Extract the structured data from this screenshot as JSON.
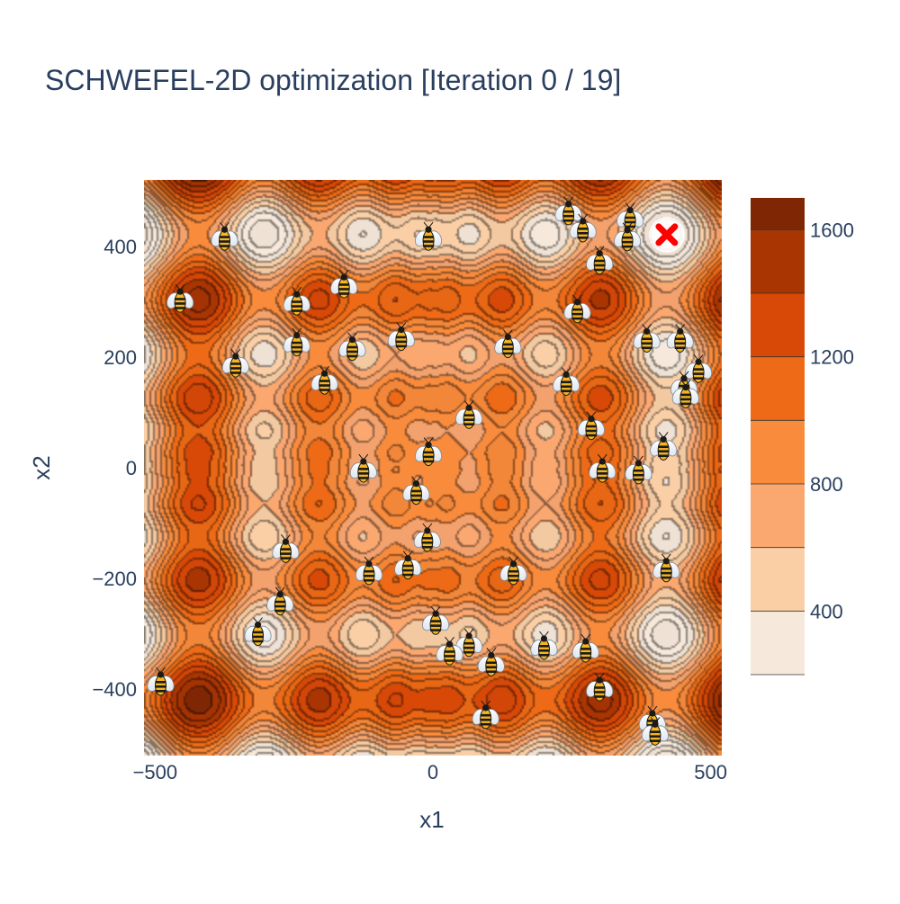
{
  "chart_data": {
    "type": "contour",
    "title": "SCHWEFEL-2D optimization [Iteration 0 / 19]",
    "xlabel": "x1",
    "ylabel": "x2",
    "xlim": [
      -520,
      520
    ],
    "ylim": [
      -520,
      520
    ],
    "x_ticks": [
      -500,
      0,
      500
    ],
    "x_tick_labels": [
      "−500",
      "0",
      "500"
    ],
    "y_ticks": [
      -400,
      -200,
      0,
      200,
      400
    ],
    "y_tick_labels": [
      "−400",
      "−200",
      "0",
      "200",
      "400"
    ],
    "colorbar": {
      "range": [
        200,
        1700
      ],
      "ticks": [
        400,
        800,
        1200,
        1600
      ],
      "tick_labels": [
        "400",
        "800",
        "1200",
        "1600"
      ],
      "levels": [
        200,
        400,
        600,
        800,
        1000,
        1200,
        1400,
        1600,
        1700
      ],
      "colors": [
        "#f6e8da",
        "#fbcfa6",
        "#fba770",
        "#f98b3c",
        "#ee6a16",
        "#d84807",
        "#a93503",
        "#7f2704"
      ]
    },
    "background_function": "schwefel",
    "best_marker": {
      "x": 421,
      "y": 421,
      "color": "#ff0000",
      "symbol": "x"
    },
    "bees": [
      {
        "x": 244,
        "y": 460
      },
      {
        "x": 355,
        "y": 449
      },
      {
        "x": 270,
        "y": 429
      },
      {
        "x": 350,
        "y": 413
      },
      {
        "x": -375,
        "y": 414
      },
      {
        "x": -8,
        "y": 414
      },
      {
        "x": 300,
        "y": 371
      },
      {
        "x": -160,
        "y": 328
      },
      {
        "x": -245,
        "y": 297
      },
      {
        "x": 260,
        "y": 283
      },
      {
        "x": -455,
        "y": 302
      },
      {
        "x": -245,
        "y": 223
      },
      {
        "x": -145,
        "y": 215
      },
      {
        "x": -57,
        "y": 233
      },
      {
        "x": 135,
        "y": 220
      },
      {
        "x": 385,
        "y": 230
      },
      {
        "x": 445,
        "y": 230
      },
      {
        "x": -355,
        "y": 185
      },
      {
        "x": -195,
        "y": 154
      },
      {
        "x": 240,
        "y": 152
      },
      {
        "x": 478,
        "y": 175
      },
      {
        "x": 452,
        "y": 145
      },
      {
        "x": 455,
        "y": 129
      },
      {
        "x": 65,
        "y": 92
      },
      {
        "x": 285,
        "y": 72
      },
      {
        "x": 415,
        "y": 35
      },
      {
        "x": -8,
        "y": 25
      },
      {
        "x": -125,
        "y": -5
      },
      {
        "x": 305,
        "y": -5
      },
      {
        "x": 370,
        "y": -8
      },
      {
        "x": -30,
        "y": -45
      },
      {
        "x": -10,
        "y": -130
      },
      {
        "x": -265,
        "y": -150
      },
      {
        "x": -45,
        "y": -180
      },
      {
        "x": -115,
        "y": -190
      },
      {
        "x": 145,
        "y": -190
      },
      {
        "x": 420,
        "y": -185
      },
      {
        "x": -275,
        "y": -245
      },
      {
        "x": 5,
        "y": -280
      },
      {
        "x": -315,
        "y": -300
      },
      {
        "x": 65,
        "y": -320
      },
      {
        "x": 200,
        "y": -325
      },
      {
        "x": 275,
        "y": -330
      },
      {
        "x": 30,
        "y": -335
      },
      {
        "x": 105,
        "y": -355
      },
      {
        "x": -490,
        "y": -390
      },
      {
        "x": 300,
        "y": -400
      },
      {
        "x": 95,
        "y": -450
      },
      {
        "x": 395,
        "y": -460
      },
      {
        "x": 400,
        "y": -480
      }
    ]
  }
}
